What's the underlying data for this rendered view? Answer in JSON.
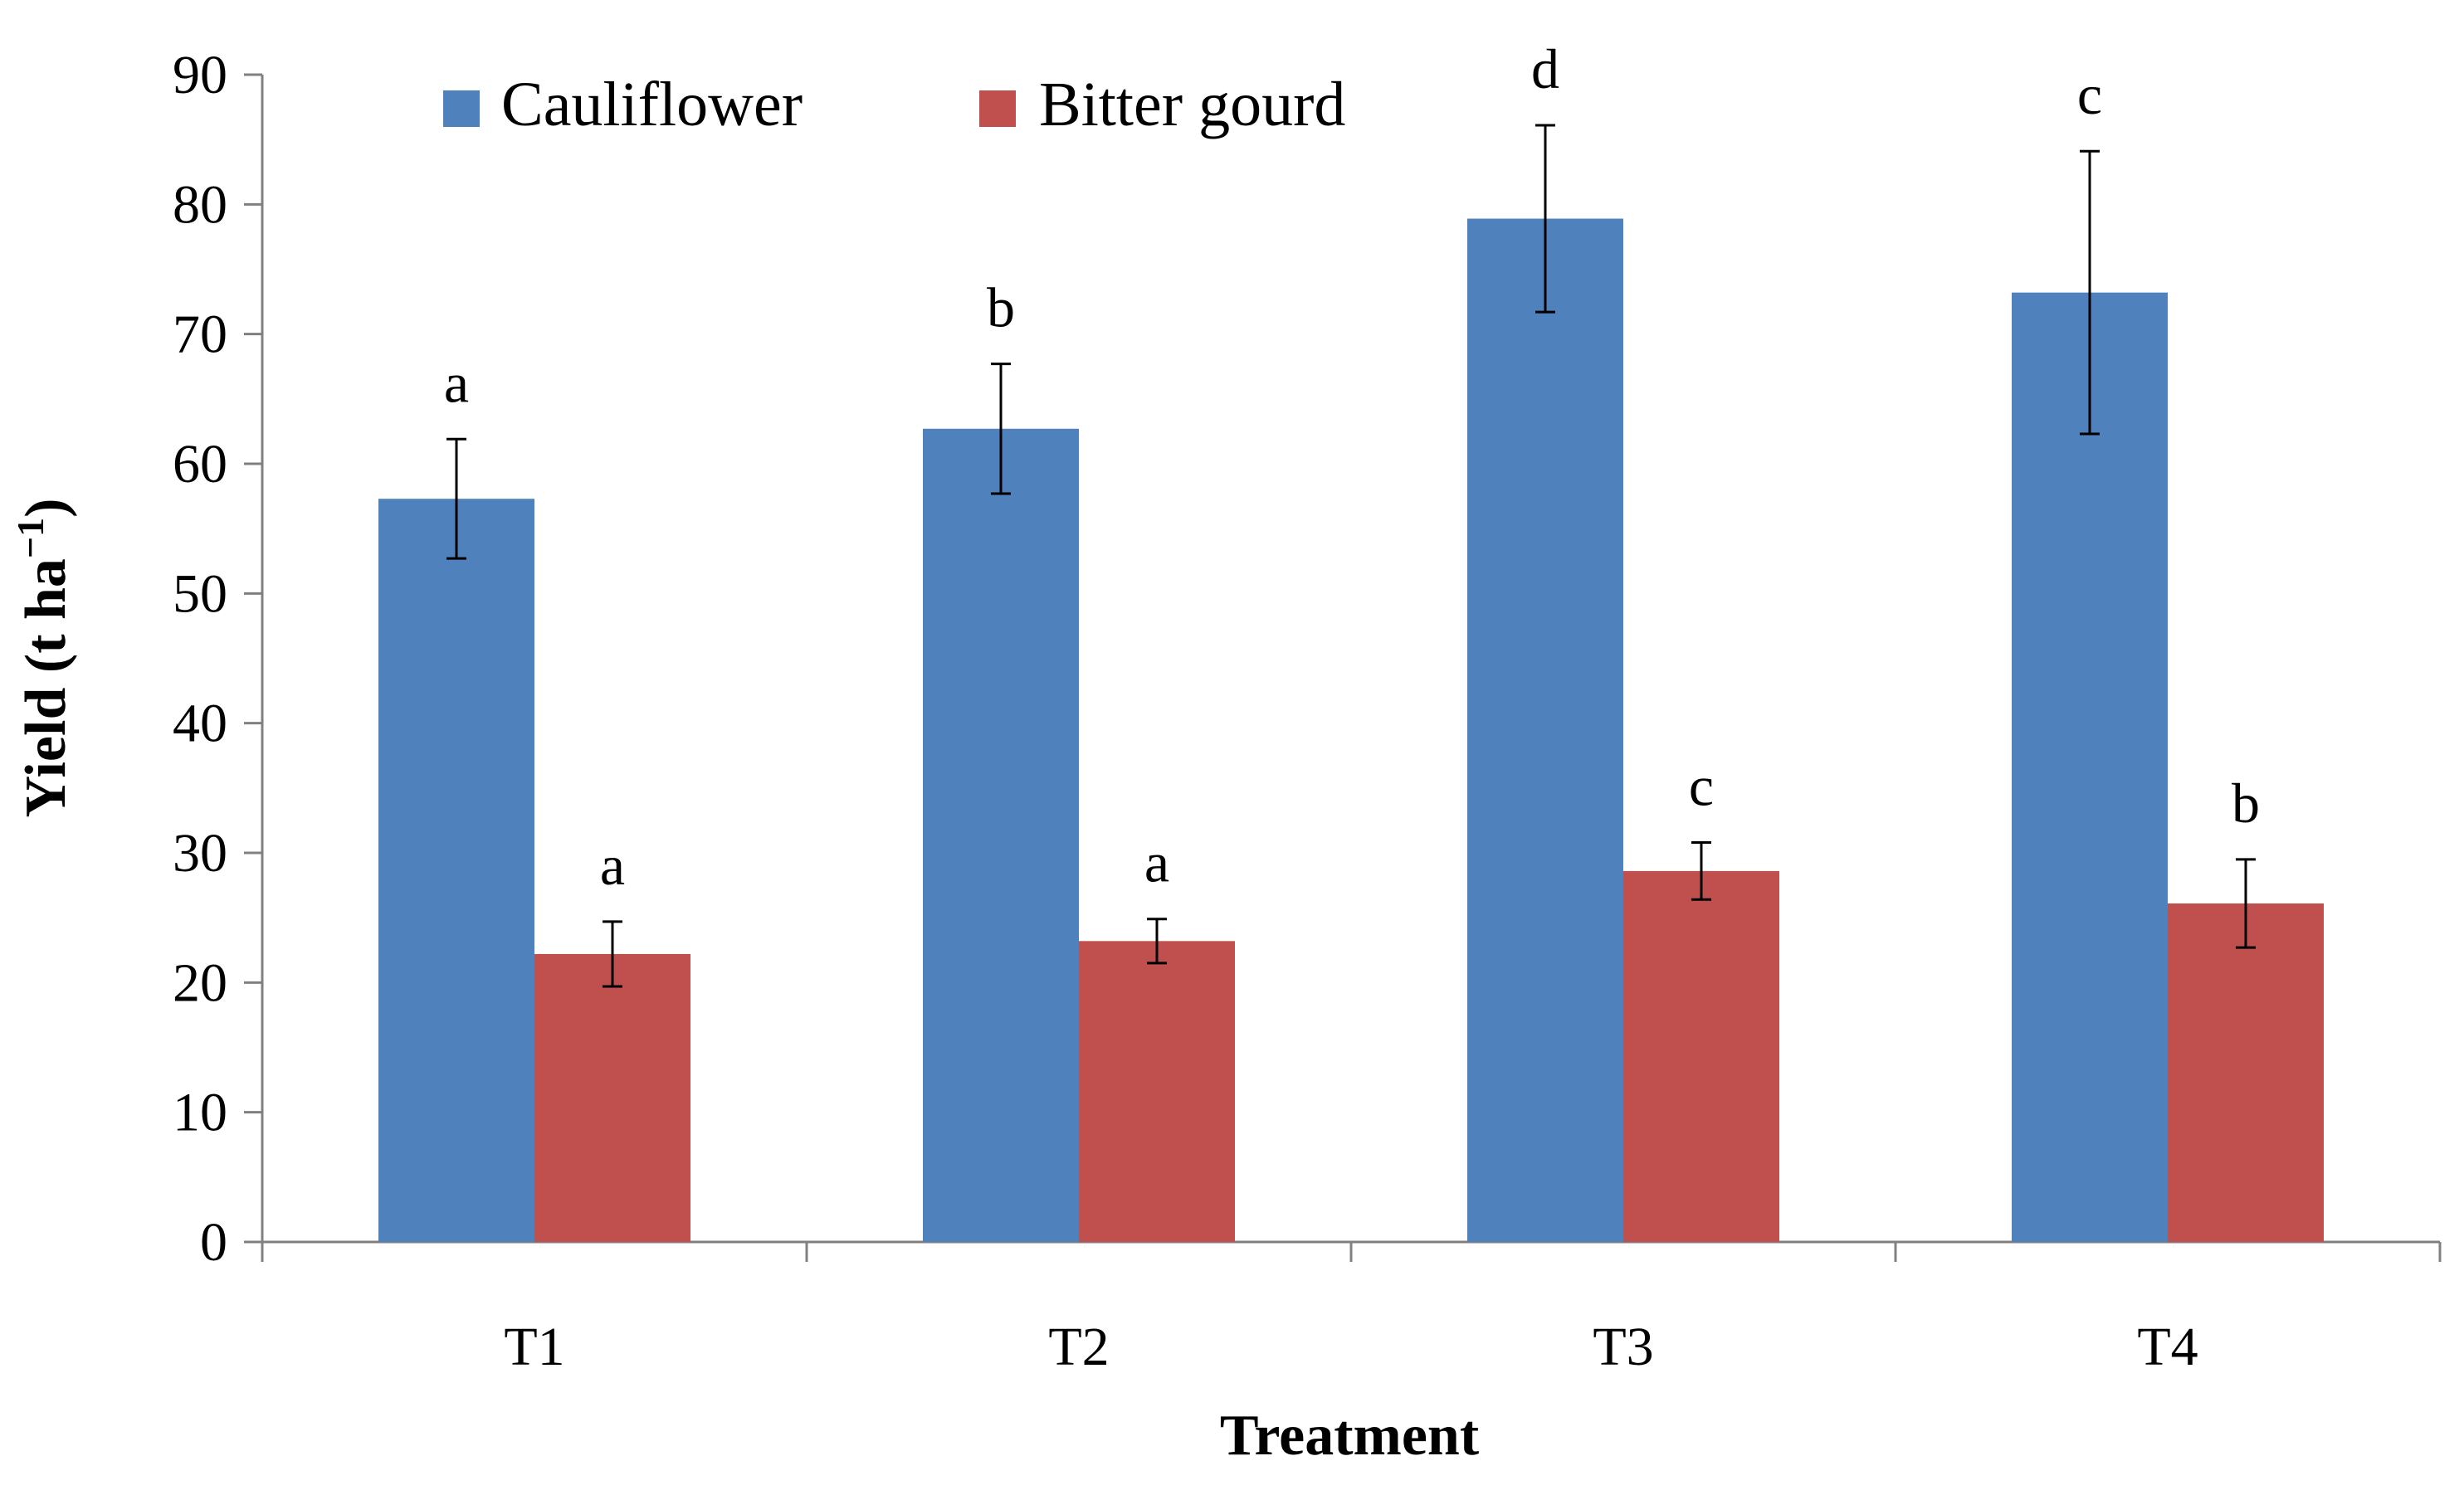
{
  "chart_data": {
    "type": "bar",
    "title": "",
    "xlabel": "Treatment",
    "ylabel": "Yield (t ha",
    "ylabel_superscript": "−1",
    "ylabel_close": ")",
    "ylim": [
      0,
      90
    ],
    "yticks": [
      0,
      10,
      20,
      30,
      40,
      50,
      60,
      70,
      80,
      90
    ],
    "ytick_labels": [
      "0",
      "10",
      "20",
      "30",
      "40",
      "50",
      "60",
      "70",
      "80",
      "90"
    ],
    "categories": [
      "T1",
      "T2",
      "T3",
      "T4"
    ],
    "legend_position": "top-left",
    "grid": false,
    "series": [
      {
        "name": "Cauliflower",
        "color": "#4F81BD",
        "values": [
          57.3,
          62.7,
          78.9,
          73.2
        ],
        "errors": [
          4.6,
          5.0,
          7.2,
          10.9
        ],
        "labels": [
          "a",
          "b",
          "d",
          "c"
        ]
      },
      {
        "name": "Bitter gourd",
        "color": "#C0504D",
        "values": [
          22.2,
          23.2,
          28.6,
          26.1
        ],
        "errors": [
          2.5,
          1.7,
          2.2,
          3.4
        ],
        "labels": [
          "a",
          "a",
          "c",
          "b"
        ]
      }
    ]
  }
}
